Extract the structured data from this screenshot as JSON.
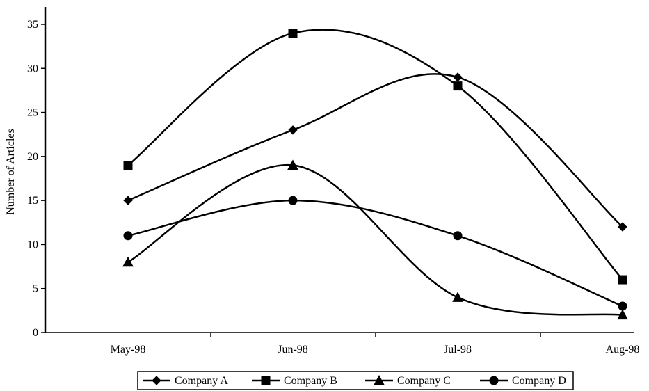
{
  "chart_data": {
    "type": "line",
    "smooth": true,
    "categories": [
      "May-98",
      "Jun-98",
      "Jul-98",
      "Aug-98"
    ],
    "ylabel": "Number of Articles",
    "ylim": [
      0,
      35
    ],
    "yticks": [
      "0",
      "5",
      "10",
      "15",
      "20",
      "25",
      "30",
      "35"
    ],
    "grid": false,
    "legend_position": "bottom",
    "series": [
      {
        "name": "Company A",
        "marker": "diamond",
        "values": [
          15,
          23,
          29,
          12
        ]
      },
      {
        "name": "Company B",
        "marker": "square",
        "values": [
          19,
          34,
          28,
          6
        ]
      },
      {
        "name": "Company C",
        "marker": "triangle",
        "values": [
          8,
          19,
          4,
          2
        ]
      },
      {
        "name": "Company D",
        "marker": "circle",
        "values": [
          11,
          15,
          11,
          3
        ]
      }
    ],
    "line_color": "#000000"
  }
}
